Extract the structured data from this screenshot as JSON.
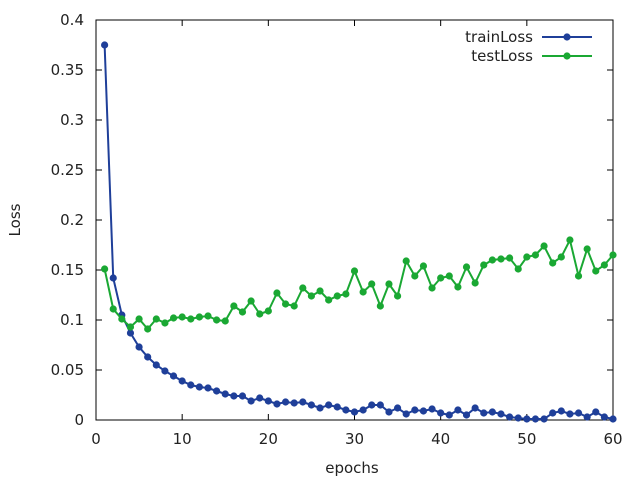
{
  "chart_data": {
    "type": "line",
    "xlabel": "epochs",
    "ylabel": "Loss",
    "xlim": [
      0,
      60
    ],
    "ylim": [
      0,
      0.4
    ],
    "x_ticks": [
      "0",
      "10",
      "20",
      "30",
      "40",
      "50",
      "60"
    ],
    "y_ticks": [
      "0",
      "0.05",
      "0.1",
      "0.15",
      "0.2",
      "0.25",
      "0.3",
      "0.35",
      "0.4"
    ],
    "grid": false,
    "legend_position": "top-right",
    "x": [
      1,
      2,
      3,
      4,
      5,
      6,
      7,
      8,
      9,
      10,
      11,
      12,
      13,
      14,
      15,
      16,
      17,
      18,
      19,
      20,
      21,
      22,
      23,
      24,
      25,
      26,
      27,
      28,
      29,
      30,
      31,
      32,
      33,
      34,
      35,
      36,
      37,
      38,
      39,
      40,
      41,
      42,
      43,
      44,
      45,
      46,
      47,
      48,
      49,
      50,
      51,
      52,
      53,
      54,
      55,
      56,
      57,
      58,
      59,
      60
    ],
    "series": [
      {
        "name": "trainLoss",
        "color": "#1f3f99",
        "values": [
          0.375,
          0.142,
          0.105,
          0.087,
          0.073,
          0.063,
          0.055,
          0.049,
          0.044,
          0.039,
          0.035,
          0.033,
          0.032,
          0.029,
          0.026,
          0.024,
          0.024,
          0.019,
          0.022,
          0.019,
          0.016,
          0.018,
          0.017,
          0.018,
          0.015,
          0.012,
          0.015,
          0.013,
          0.01,
          0.008,
          0.01,
          0.015,
          0.015,
          0.008,
          0.012,
          0.006,
          0.01,
          0.009,
          0.011,
          0.007,
          0.005,
          0.01,
          0.005,
          0.012,
          0.007,
          0.008,
          0.006,
          0.003,
          0.002,
          0.001,
          0.001,
          0.001,
          0.007,
          0.009,
          0.006,
          0.007,
          0.003,
          0.008,
          0.003,
          0.001
        ]
      },
      {
        "name": "testLoss",
        "color": "#1aa833",
        "values": [
          0.151,
          0.111,
          0.101,
          0.093,
          0.101,
          0.091,
          0.101,
          0.097,
          0.102,
          0.103,
          0.101,
          0.103,
          0.104,
          0.1,
          0.099,
          0.114,
          0.108,
          0.119,
          0.106,
          0.109,
          0.127,
          0.116,
          0.114,
          0.132,
          0.124,
          0.129,
          0.12,
          0.124,
          0.126,
          0.149,
          0.128,
          0.136,
          0.114,
          0.136,
          0.124,
          0.159,
          0.144,
          0.154,
          0.132,
          0.142,
          0.144,
          0.133,
          0.153,
          0.137,
          0.155,
          0.16,
          0.161,
          0.162,
          0.151,
          0.163,
          0.165,
          0.174,
          0.157,
          0.163,
          0.18,
          0.144,
          0.171,
          0.149,
          0.155,
          0.165
        ]
      }
    ]
  }
}
